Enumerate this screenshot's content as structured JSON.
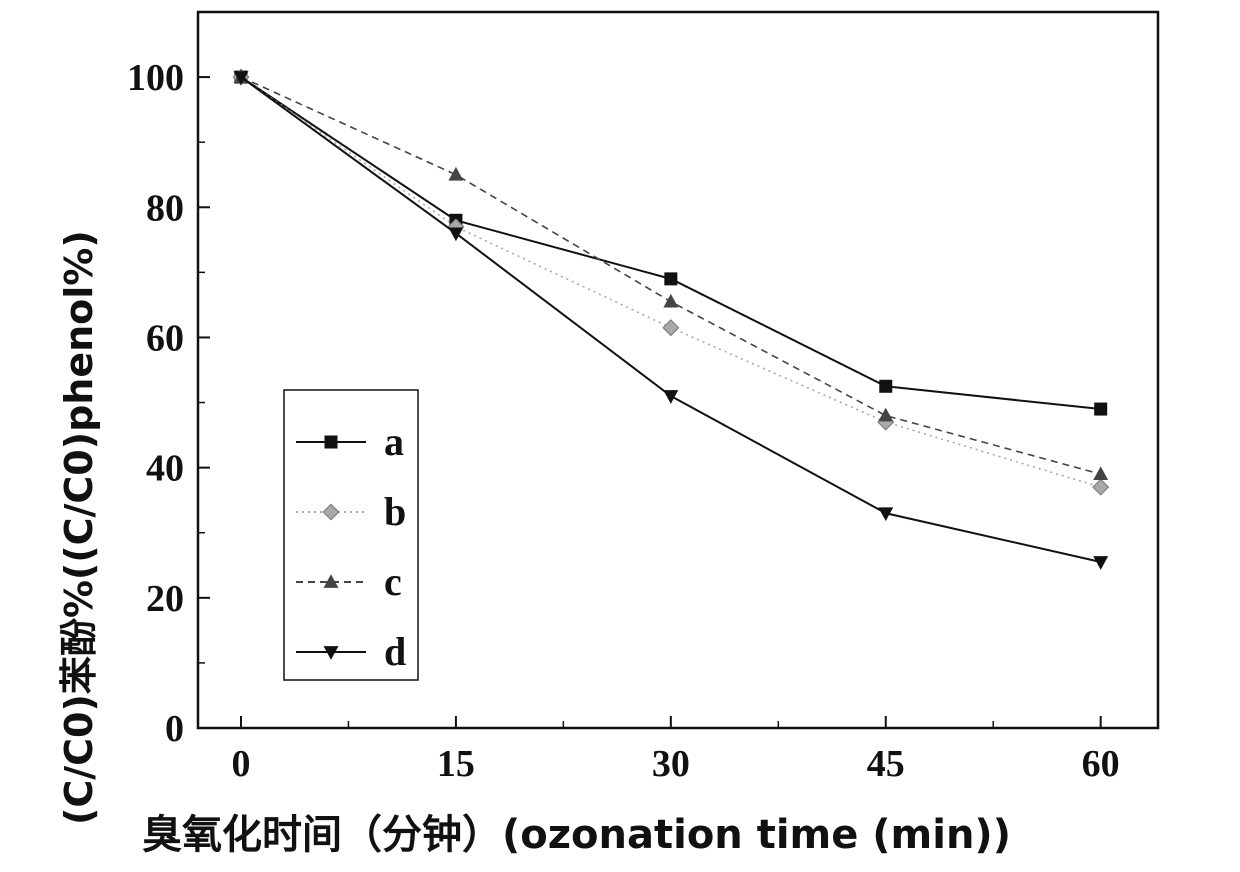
{
  "chart_data": {
    "type": "line",
    "x": [
      0,
      15,
      30,
      45,
      60
    ],
    "xlim": [
      -3,
      64
    ],
    "ylim": [
      0,
      110
    ],
    "xticks": [
      0,
      15,
      30,
      45,
      60
    ],
    "yticks": [
      0,
      20,
      40,
      60,
      80,
      100
    ],
    "xlabel": "臭氧化时间（分钟）(ozonation time (min))",
    "ylabel": "(C/C0)苯酚%((C/C0)phenol%)",
    "grid": false,
    "legend_position": "lower-left",
    "series": [
      {
        "name": "a",
        "marker": "square",
        "line": "solid",
        "color": "#111111",
        "values": [
          100,
          78,
          69,
          52.5,
          49
        ]
      },
      {
        "name": "b",
        "marker": "diamond",
        "line": "dotted",
        "color": "#a8a8a8",
        "values": [
          100,
          77,
          61.5,
          47,
          37
        ]
      },
      {
        "name": "c",
        "marker": "triangle-up",
        "line": "dashed",
        "color": "#444444",
        "values": [
          100,
          85,
          65.5,
          48,
          39
        ]
      },
      {
        "name": "d",
        "marker": "triangle-down",
        "line": "solid",
        "color": "#111111",
        "values": [
          100,
          76,
          51,
          33,
          25.5
        ]
      }
    ]
  }
}
